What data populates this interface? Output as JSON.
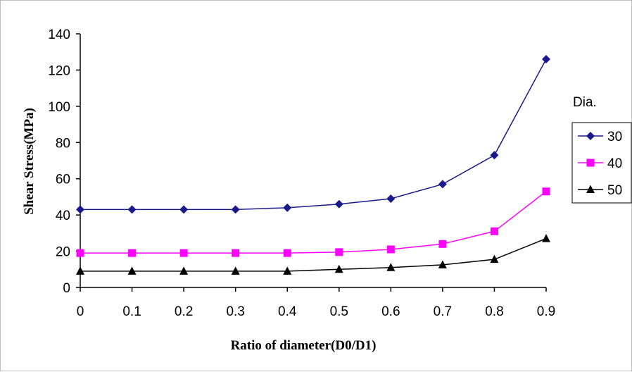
{
  "chart_data": {
    "type": "line",
    "title": "",
    "xlabel": "Ratio of diameter(D0/D1)",
    "ylabel": "Shear Stress(MPa)",
    "x": [
      0,
      0.1,
      0.2,
      0.3,
      0.4,
      0.5,
      0.6,
      0.7,
      0.8,
      0.9
    ],
    "x_tick_labels": [
      "0",
      "0.1",
      "0.2",
      "0.3",
      "0.4",
      "0.5",
      "0.6",
      "0.7",
      "0.8",
      "0.9"
    ],
    "ylim": [
      0,
      140
    ],
    "y_ticks": [
      0,
      20,
      40,
      60,
      80,
      100,
      120,
      140
    ],
    "grid": false,
    "legend_title": "Dia.",
    "legend_position": "right",
    "series": [
      {
        "name": "30",
        "marker": "diamond",
        "color": "#1a1a8c",
        "values": [
          43,
          43,
          43,
          43,
          44,
          46,
          49,
          57,
          73,
          126
        ]
      },
      {
        "name": "40",
        "marker": "square",
        "color": "#ff00ff",
        "values": [
          19,
          19,
          19,
          19,
          19,
          19.5,
          21,
          24,
          31,
          53
        ]
      },
      {
        "name": "50",
        "marker": "triangle",
        "color": "#000000",
        "values": [
          9,
          9,
          9,
          9,
          9,
          10,
          11,
          12.5,
          15.5,
          27
        ]
      }
    ]
  }
}
